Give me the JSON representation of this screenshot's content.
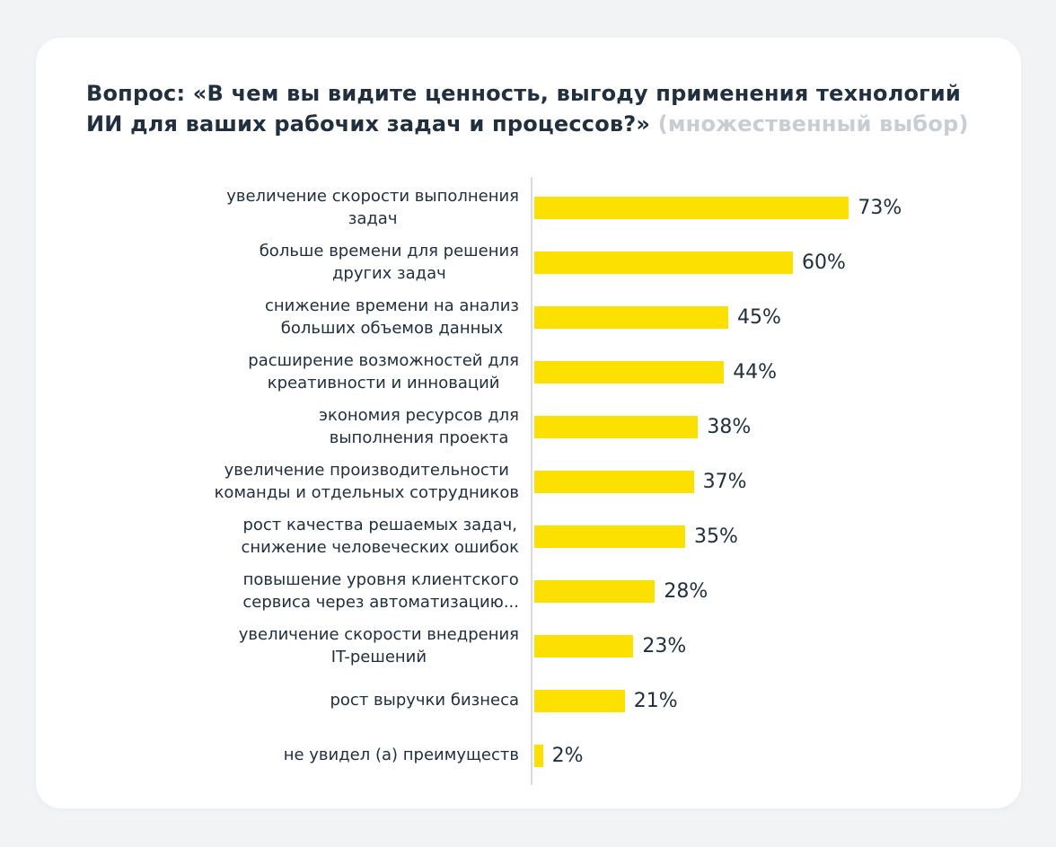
{
  "header": {
    "question": "Вопрос: «В чем вы видите ценность, выгоду применения технологий\nИИ для ваших рабочих задач и процессов?»",
    "note": "(множественный выбор)"
  },
  "colors": {
    "page_background": "#f2f3f5",
    "card_background": "#ffffff",
    "bar_yellow": "#fbe000",
    "text_navy": "#212f3f",
    "note_gray": "#c8cdd4",
    "axis_gray": "#d8dce0"
  },
  "chart_data": {
    "type": "bar",
    "orientation": "horizontal",
    "title": "Вопрос: «В чем вы видите ценность, выгоду применения технологий ИИ для ваших рабочих задач и процессов?»",
    "subtitle": "(множественный выбор)",
    "categories": [
      "увеличение скорости выполнения\nзадач",
      "больше времени для решения\nдругих задач",
      "снижение времени на анализ\nбольших объемов данных",
      "расширение возможностей для\nкреативности и инноваций",
      "экономия ресурсов для\nвыполнения проекта",
      "увеличение производительности\nкоманды и отдельных сотрудников",
      "рост качества решаемых задач,\nснижение человеческих ошибок",
      "повышение уровня клиентского\nсервиса через автоматизацию...",
      "увеличение скорости внедрения\nIT-решений",
      "рост выручки бизнеса",
      "не увидел (а) преимуществ"
    ],
    "values": [
      73,
      60,
      45,
      44,
      38,
      37,
      35,
      28,
      23,
      21,
      2
    ],
    "value_suffix": "%",
    "xlim": [
      0,
      100
    ],
    "bar_color": "#fbe000",
    "grid": false,
    "legend": false,
    "value_labels": "end-of-bar"
  }
}
